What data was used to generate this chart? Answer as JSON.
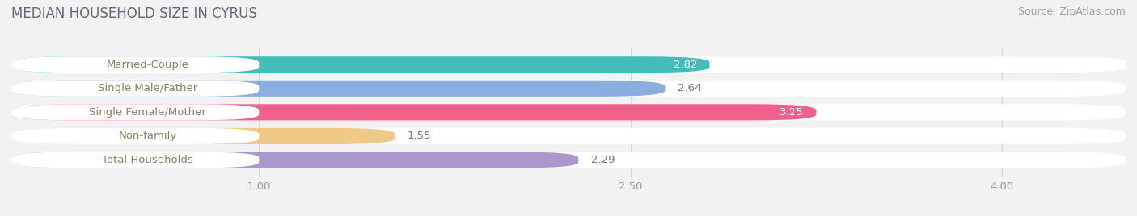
{
  "title": "MEDIAN HOUSEHOLD SIZE IN CYRUS",
  "source": "Source: ZipAtlas.com",
  "categories": [
    "Married-Couple",
    "Single Male/Father",
    "Single Female/Mother",
    "Non-family",
    "Total Households"
  ],
  "values": [
    2.82,
    2.64,
    3.25,
    1.55,
    2.29
  ],
  "bar_colors": [
    "#45bcbc",
    "#8aaee0",
    "#f0608a",
    "#f0c888",
    "#a898cc"
  ],
  "label_text_color": "#888060",
  "value_colors_inside": [
    true,
    false,
    true,
    false,
    false
  ],
  "background_color": "#f2f2f2",
  "title_color": "#606878",
  "source_color": "#a0a0a0",
  "xlim_min": 0.0,
  "xlim_max": 4.5,
  "xstart": 0.0,
  "xticks": [
    1.0,
    2.5,
    4.0
  ],
  "xticklabels": [
    "1.00",
    "2.50",
    "4.00"
  ],
  "label_fontsize": 9.5,
  "value_fontsize": 9.5,
  "title_fontsize": 12,
  "source_fontsize": 9
}
